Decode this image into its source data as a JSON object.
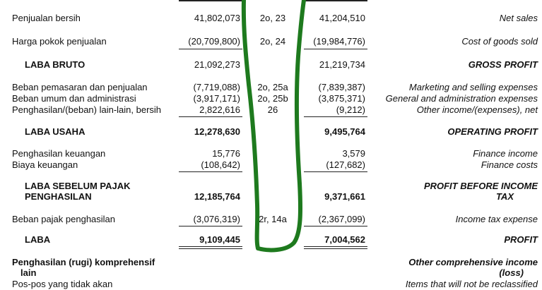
{
  "rows": [
    {
      "id": "Penjualan bersih",
      "cur": "41,802,073",
      "note": "2o, 23",
      "prior": "41,204,510",
      "en": "Net sales"
    },
    {
      "id": "Harga pokok penjualan",
      "cur": "(20,709,800)",
      "note": "2o, 24",
      "prior": "(19,984,776)",
      "en": "Cost of goods sold"
    },
    {
      "id": "LABA BRUTO",
      "cur": "21,092,273",
      "note": "",
      "prior": "21,219,734",
      "en": "GROSS PROFIT"
    },
    {
      "id": "Beban pemasaran dan penjualan",
      "cur": "(7,719,088)",
      "note": "2o, 25a",
      "prior": "(7,839,387)",
      "en": "Marketing and selling expenses"
    },
    {
      "id": "Beban umum dan administrasi",
      "cur": "(3,917,171)",
      "note": "2o, 25b",
      "prior": "(3,875,371)",
      "en": "General and administration expenses"
    },
    {
      "id": "Penghasilan/(beban) lain-lain, bersih",
      "cur": "2,822,616",
      "note": "26",
      "prior": "(9,212)",
      "en": "Other income/(expenses), net"
    },
    {
      "id": "LABA USAHA",
      "cur": "12,278,630",
      "note": "",
      "prior": "9,495,764",
      "en": "OPERATING PROFIT"
    },
    {
      "id": "Penghasilan keuangan",
      "cur": "15,776",
      "note": "",
      "prior": "3,579",
      "en": "Finance income"
    },
    {
      "id": "Biaya keuangan",
      "cur": "(108,642)",
      "note": "",
      "prior": "(127,682)",
      "en": "Finance costs"
    },
    {
      "id": "LABA SEBELUM PAJAK",
      "cur": "",
      "note": "",
      "prior": "",
      "en": "PROFIT BEFORE INCOME"
    },
    {
      "id": "PENGHASILAN",
      "cur": "12,185,764",
      "note": "",
      "prior": "9,371,661",
      "en": "TAX"
    },
    {
      "id": "Beban pajak penghasilan",
      "cur": "(3,076,319)",
      "note": "2r, 14a",
      "prior": "(2,367,099)",
      "en": "Income tax expense"
    },
    {
      "id": "LABA",
      "cur": "9,109,445",
      "note": "",
      "prior": "7,004,562",
      "en": "PROFIT"
    },
    {
      "id": "Penghasilan (rugi) komprehensif",
      "cur": "",
      "note": "",
      "prior": "",
      "en": "Other comprehensive income"
    },
    {
      "id": "lain",
      "cur": "",
      "note": "",
      "prior": "",
      "en": "(loss)"
    },
    {
      "id": "Pos-pos yang tidak akan",
      "cur": "",
      "note": "",
      "prior": "",
      "en": "Items that will not be reclassified"
    }
  ],
  "colors": {
    "text": "#111111",
    "ink": "#1e7a1e"
  }
}
